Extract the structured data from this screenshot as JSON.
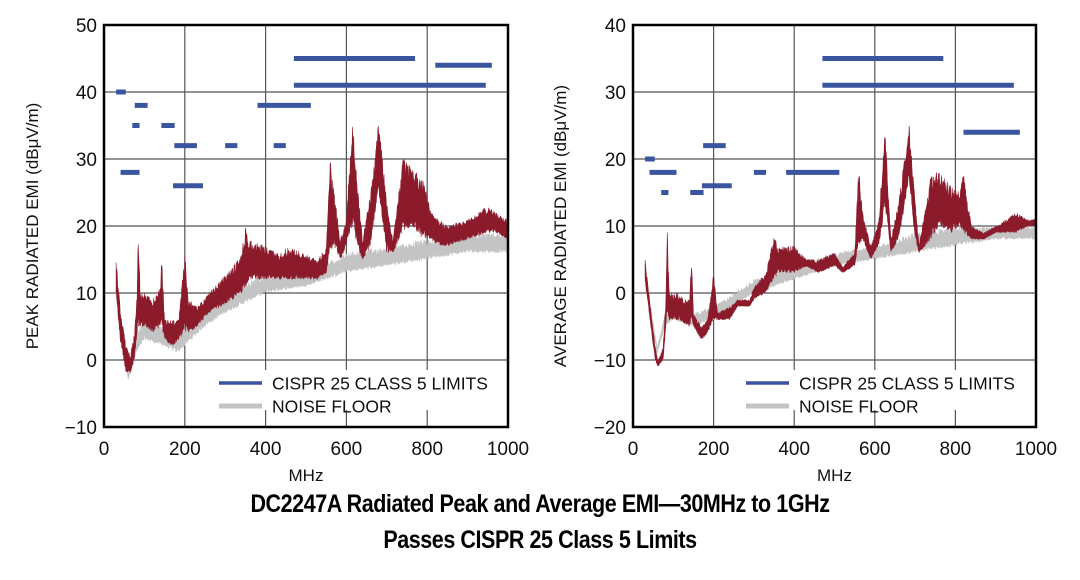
{
  "caption": {
    "line1": "DC2247A Radiated Peak and Average EMI—30MHz to 1GHz",
    "line2": "Passes CISPR 25 Class 5 Limits"
  },
  "colors": {
    "signal": "#8b1a2b",
    "noise_floor": "#c4c4c4",
    "limits": "#3a55a0",
    "grid": "#555555",
    "axis": "#000000"
  },
  "chart_data": [
    {
      "type": "area",
      "id": "peak",
      "title": "",
      "xlabel": "MHz",
      "ylabel": "PEAK RADIATED EMI (dBμV/m)",
      "xlim": [
        0,
        1000
      ],
      "ylim": [
        -10,
        50
      ],
      "xticks": [
        0,
        200,
        400,
        600,
        800,
        1000
      ],
      "xtick_labels": [
        "0",
        "200",
        "400",
        "600",
        "800",
        "1000"
      ],
      "yticks": [
        -10,
        0,
        10,
        20,
        30,
        40,
        50
      ],
      "ytick_labels": [
        "−10",
        "0",
        "10",
        "20",
        "30",
        "40",
        "50"
      ],
      "grid": true,
      "legend": {
        "placement": "bottom-right",
        "entries": [
          {
            "label": "CISPR 25 CLASS 5 LIMITS",
            "series": "limits"
          },
          {
            "label": "NOISE FLOOR",
            "series": "noise_floor"
          }
        ]
      },
      "limits": [
        {
          "x": [
            30,
            54
          ],
          "y": 40
        },
        {
          "x": [
            76,
            108
          ],
          "y": 38
        },
        {
          "x": [
            70,
            88
          ],
          "y": 35
        },
        {
          "x": [
            142,
            175
          ],
          "y": 35
        },
        {
          "x": [
            174,
            230
          ],
          "y": 32
        },
        {
          "x": [
            300,
            330
          ],
          "y": 32
        },
        {
          "x": [
            420,
            450
          ],
          "y": 32
        },
        {
          "x": [
            41,
            88
          ],
          "y": 28
        },
        {
          "x": [
            171,
            245
          ],
          "y": 26
        },
        {
          "x": [
            380,
            512
          ],
          "y": 38
        },
        {
          "x": [
            470,
            770
          ],
          "y": 45
        },
        {
          "x": [
            470,
            945
          ],
          "y": 41
        },
        {
          "x": [
            820,
            960
          ],
          "y": 44
        }
      ],
      "signal_envelope": {
        "x": [
          30,
          40,
          55,
          65,
          75,
          82,
          85,
          90,
          100,
          120,
          140,
          142,
          150,
          170,
          185,
          200,
          210,
          230,
          260,
          290,
          320,
          340,
          350,
          360,
          400,
          430,
          460,
          490,
          530,
          550,
          560,
          570,
          585,
          600,
          615,
          625,
          640,
          660,
          680,
          700,
          715,
          740,
          760,
          790,
          810,
          830,
          850,
          900,
          950,
          970,
          1000
        ],
        "high": [
          15,
          8,
          2,
          1,
          4,
          10,
          20,
          10,
          10,
          9,
          11,
          17,
          6,
          6,
          6,
          16,
          9,
          8,
          10,
          12,
          14,
          16,
          20,
          18,
          17,
          16,
          17,
          16,
          15,
          17,
          30,
          25,
          18,
          21,
          37,
          28,
          18,
          25,
          36,
          24,
          18,
          30,
          29,
          27,
          22,
          21,
          20,
          21,
          23,
          22,
          21
        ],
        "low": [
          10,
          3,
          -2,
          -2,
          0,
          4,
          5,
          5,
          5,
          4,
          5,
          5,
          3,
          2,
          3,
          4,
          4,
          5,
          7,
          8,
          9,
          10,
          11,
          12,
          12,
          12,
          12,
          12,
          12,
          13,
          16,
          17,
          15,
          17,
          20,
          17,
          15,
          17,
          25,
          16,
          16,
          19,
          20,
          18,
          18,
          17,
          17,
          18,
          19,
          19,
          18
        ]
      },
      "noise_envelope": {
        "x": [
          30,
          60,
          80,
          100,
          150,
          180,
          200,
          250,
          300,
          400,
          500,
          600,
          700,
          800,
          900,
          1000
        ],
        "high": [
          11,
          -1,
          4,
          6,
          5,
          5,
          6,
          8,
          10,
          13,
          13,
          16,
          17,
          18,
          19,
          19
        ],
        "low": [
          9,
          -3,
          1,
          3,
          2,
          1,
          2,
          5,
          7,
          10,
          11,
          13,
          14,
          15,
          16,
          16
        ]
      }
    },
    {
      "type": "area",
      "id": "average",
      "title": "",
      "xlabel": "MHz",
      "ylabel": "AVERAGE RADIATED EMI (dBμV/m)",
      "xlim": [
        0,
        1000
      ],
      "ylim": [
        -20,
        40
      ],
      "xticks": [
        0,
        200,
        400,
        600,
        800,
        1000
      ],
      "xtick_labels": [
        "0",
        "200",
        "400",
        "600",
        "800",
        "1000"
      ],
      "yticks": [
        -20,
        -10,
        0,
        10,
        20,
        30,
        40
      ],
      "ytick_labels": [
        "−20",
        "−10",
        "0",
        "10",
        "20",
        "30",
        "40"
      ],
      "grid": true,
      "legend": {
        "placement": "bottom-right",
        "entries": [
          {
            "label": "CISPR 25 CLASS 5 LIMITS",
            "series": "limits"
          },
          {
            "label": "NOISE FLOOR",
            "series": "noise_floor"
          }
        ]
      },
      "limits": [
        {
          "x": [
            30,
            54
          ],
          "y": 20
        },
        {
          "x": [
            41,
            108
          ],
          "y": 18
        },
        {
          "x": [
            70,
            88
          ],
          "y": 15
        },
        {
          "x": [
            142,
            175
          ],
          "y": 15
        },
        {
          "x": [
            174,
            230
          ],
          "y": 22
        },
        {
          "x": [
            171,
            245
          ],
          "y": 16
        },
        {
          "x": [
            300,
            330
          ],
          "y": 18
        },
        {
          "x": [
            380,
            512
          ],
          "y": 18
        },
        {
          "x": [
            470,
            770
          ],
          "y": 35
        },
        {
          "x": [
            470,
            945
          ],
          "y": 31
        },
        {
          "x": [
            820,
            960
          ],
          "y": 24
        }
      ],
      "signal_envelope": {
        "x": [
          30,
          40,
          55,
          62,
          75,
          82,
          85,
          90,
          110,
          140,
          145,
          150,
          170,
          185,
          200,
          210,
          240,
          260,
          290,
          300,
          330,
          350,
          360,
          400,
          430,
          460,
          500,
          520,
          550,
          560,
          570,
          590,
          610,
          625,
          640,
          660,
          685,
          700,
          710,
          740,
          760,
          790,
          810,
          820,
          840,
          870,
          900,
          950,
          980,
          1000
        ],
        "high": [
          5,
          0,
          -8,
          -10,
          -8,
          0,
          9,
          0,
          0,
          -1,
          6,
          -3,
          -5,
          -4,
          3,
          -3,
          -2,
          -1,
          -1,
          1,
          3,
          9,
          7,
          7,
          5,
          5,
          6,
          4,
          6,
          19,
          12,
          7,
          11,
          25,
          8,
          14,
          25,
          14,
          7,
          18,
          18,
          16,
          15,
          18,
          10,
          9,
          10,
          12,
          11,
          11
        ],
        "low": [
          2,
          -3,
          -10,
          -11,
          -10,
          -5,
          -3,
          -4,
          -4,
          -5,
          -4,
          -5,
          -7,
          -6,
          -4,
          -4,
          -4,
          -2,
          -2,
          -1,
          0,
          2,
          3,
          3,
          4,
          3,
          4,
          3,
          4,
          7,
          8,
          5,
          7,
          13,
          6,
          8,
          17,
          8,
          6,
          8,
          10,
          9,
          10,
          9,
          8,
          8,
          9,
          9,
          10,
          10
        ]
      },
      "noise_envelope": {
        "x": [
          30,
          60,
          80,
          100,
          150,
          200,
          250,
          300,
          400,
          500,
          600,
          700,
          800,
          900,
          1000
        ],
        "high": [
          3,
          -8,
          -3,
          -2,
          -3,
          -2,
          0,
          2,
          4,
          6,
          7,
          9,
          10,
          10,
          10
        ],
        "low": [
          1,
          -9,
          -5,
          -4,
          -5,
          -4,
          -2,
          0,
          2,
          4,
          5,
          6,
          7,
          8,
          8
        ]
      }
    }
  ]
}
